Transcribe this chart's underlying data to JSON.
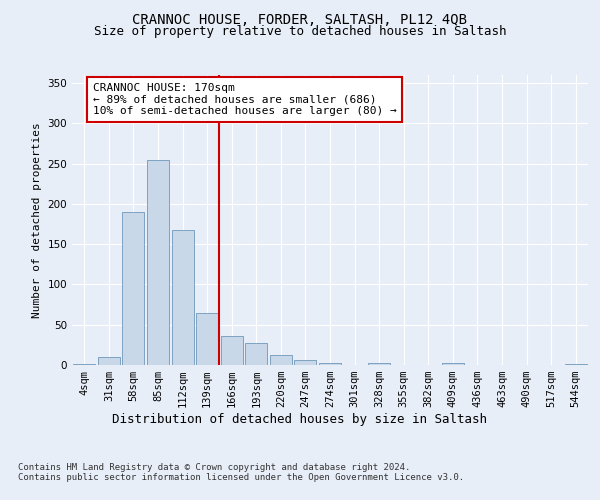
{
  "title": "CRANNOC HOUSE, FORDER, SALTASH, PL12 4QB",
  "subtitle": "Size of property relative to detached houses in Saltash",
  "xlabel": "Distribution of detached houses by size in Saltash",
  "ylabel": "Number of detached properties",
  "categories": [
    "4sqm",
    "31sqm",
    "58sqm",
    "85sqm",
    "112sqm",
    "139sqm",
    "166sqm",
    "193sqm",
    "220sqm",
    "247sqm",
    "274sqm",
    "301sqm",
    "328sqm",
    "355sqm",
    "382sqm",
    "409sqm",
    "436sqm",
    "463sqm",
    "490sqm",
    "517sqm",
    "544sqm"
  ],
  "values": [
    1,
    10,
    190,
    255,
    167,
    65,
    36,
    27,
    12,
    6,
    3,
    0,
    3,
    0,
    0,
    2,
    0,
    0,
    0,
    0,
    1
  ],
  "bar_color": "#c8d8e8",
  "bar_edge_color": "#5a8ab0",
  "vline_x": 5.5,
  "vline_color": "#cc0000",
  "annotation_text": "CRANNOC HOUSE: 170sqm\n← 89% of detached houses are smaller (686)\n10% of semi-detached houses are larger (80) →",
  "annotation_box_color": "#ffffff",
  "annotation_box_edge": "#cc0000",
  "ylim": [
    0,
    360
  ],
  "yticks": [
    0,
    50,
    100,
    150,
    200,
    250,
    300,
    350
  ],
  "bg_color": "#e8eef8",
  "plot_bg_color": "#e8eef8",
  "footnote": "Contains HM Land Registry data © Crown copyright and database right 2024.\nContains public sector information licensed under the Open Government Licence v3.0.",
  "title_fontsize": 10,
  "subtitle_fontsize": 9,
  "xlabel_fontsize": 9,
  "ylabel_fontsize": 8,
  "tick_fontsize": 7.5,
  "annot_fontsize": 8,
  "footnote_fontsize": 6.5
}
